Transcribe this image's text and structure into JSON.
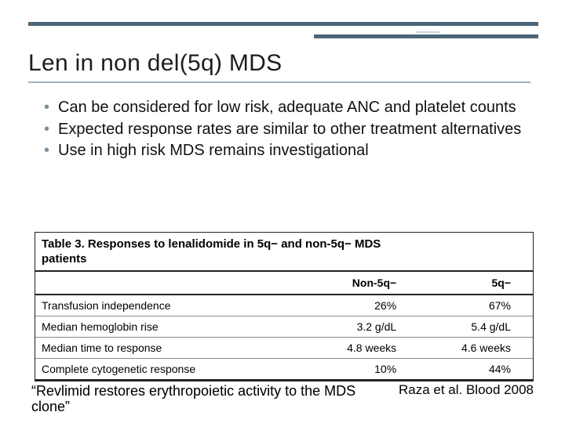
{
  "colors": {
    "bar": "#4a6678",
    "bar_light": "#c9d4db",
    "title_text": "#1d1d1d",
    "bullet_marker": "#7a909e",
    "table_border": "#222222",
    "row_divider": "#888888",
    "background": "#ffffff"
  },
  "title": "Len in non del(5q) MDS",
  "bullets": [
    "Can be considered for low risk, adequate ANC and platelet counts",
    "Expected response rates are similar to other treatment alternatives",
    "Use in high risk MDS remains investigational"
  ],
  "table": {
    "caption_line1": "Table 3. Responses to lenalidomide in 5q− and non-5q− MDS",
    "caption_line2": "patients",
    "columns": [
      "",
      "Non-5q−",
      "5q−"
    ],
    "rows": [
      [
        "Transfusion independence",
        "26%",
        "67%"
      ],
      [
        "Median hemoglobin rise",
        "3.2 g/dL",
        "5.4 g/dL"
      ],
      [
        "Median time to response",
        "4.8 weeks",
        "4.6 weeks"
      ],
      [
        "Complete cytogenetic response",
        "10%",
        "44%"
      ]
    ],
    "col_widths_pct": [
      54,
      23,
      23
    ],
    "header_fontsize": 14,
    "cell_fontsize": 14
  },
  "quote": "“Revlimid restores erythropoietic activity to the MDS clone”",
  "citation": "Raza et al. Blood 2008",
  "fonts": {
    "title_size_pt": 30,
    "bullet_size_pt": 20,
    "quote_size_pt": 18,
    "citation_size_pt": 17
  }
}
